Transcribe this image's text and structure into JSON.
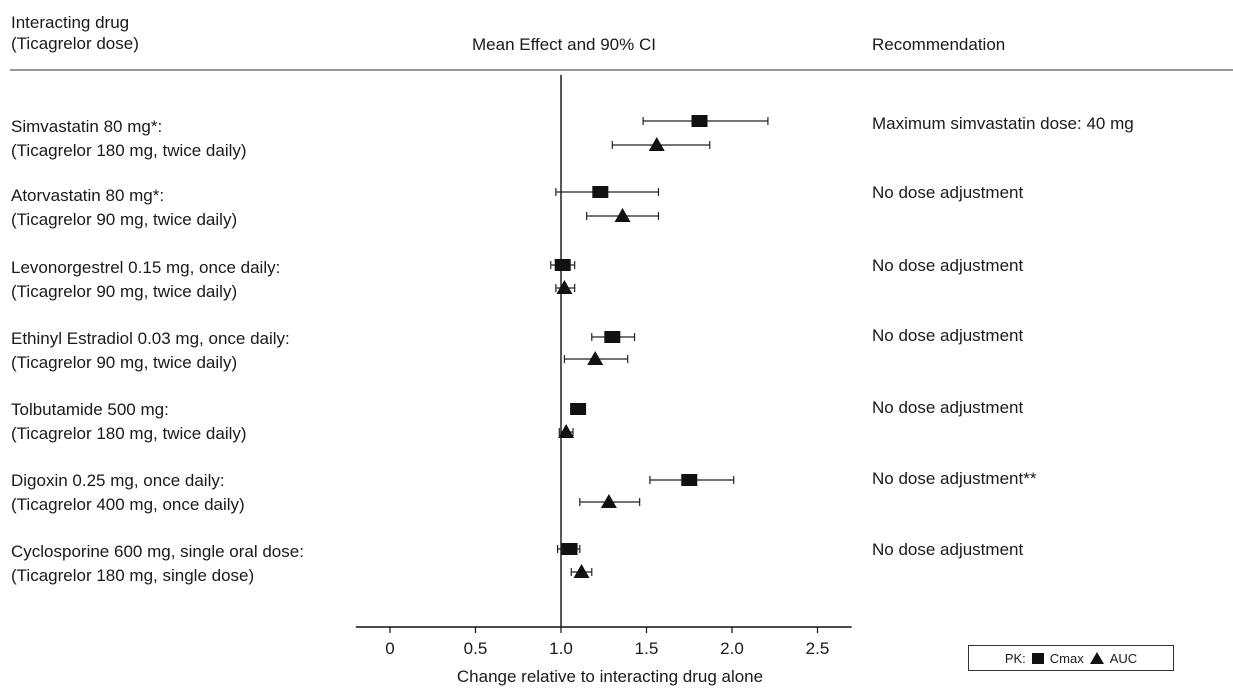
{
  "header": {
    "col1_line1": "Interacting drug",
    "col1_line2": "(Ticagrelor dose)",
    "col2": "Mean Effect and 90% CI",
    "col3": "Recommendation"
  },
  "rows": [
    {
      "drug": "Simvastatin 80 mg*:",
      "dose": "(Ticagrelor 180 mg, twice daily)",
      "recommendation": "Maximum simvastatin dose: 40 mg"
    },
    {
      "drug": "Atorvastatin 80 mg*:",
      "dose": "(Ticagrelor 90 mg, twice daily)",
      "recommendation": "No dose adjustment"
    },
    {
      "drug": "Levonorgestrel 0.15 mg, once daily:",
      "dose": "(Ticagrelor 90 mg, twice daily)",
      "recommendation": "No dose adjustment"
    },
    {
      "drug": "Ethinyl Estradiol 0.03 mg, once daily:",
      "dose": "(Ticagrelor 90 mg, twice daily)",
      "recommendation": "No dose adjustment"
    },
    {
      "drug": "Tolbutamide 500 mg:",
      "dose": "(Ticagrelor 180 mg, twice daily)",
      "recommendation": "No dose adjustment"
    },
    {
      "drug": "Digoxin 0.25 mg, once daily:",
      "dose": "(Ticagrelor 400 mg, once daily)",
      "recommendation": "No dose adjustment**"
    },
    {
      "drug": "Cyclosporine 600 mg, single oral dose:",
      "dose": "(Ticagrelor 180 mg, single dose)",
      "recommendation": "No dose adjustment"
    }
  ],
  "legend": {
    "prefix": "PK:",
    "cmax": "Cmax",
    "auc": "AUC"
  },
  "chart_data": {
    "type": "scatter",
    "xlabel": "Change relative to interacting drug alone",
    "xlim": [
      -0.2,
      2.7
    ],
    "xticks": [
      0,
      0.5,
      1.0,
      1.5,
      2.0,
      2.5
    ],
    "xtick_labels": [
      "0",
      "0.5",
      "1.0",
      "1.5",
      "2.0",
      "2.5"
    ],
    "reference_line": 1.0,
    "categories": [
      "Simvastatin 80 mg*",
      "Atorvastatin 80 mg*",
      "Levonorgestrel 0.15 mg",
      "Ethinyl Estradiol 0.03 mg",
      "Tolbutamide 500 mg",
      "Digoxin 0.25 mg",
      "Cyclosporine 600 mg"
    ],
    "series": [
      {
        "name": "Cmax",
        "marker": "square",
        "mean": [
          1.81,
          1.23,
          1.01,
          1.3,
          1.1,
          1.75,
          1.05
        ],
        "lower": [
          1.48,
          0.97,
          0.94,
          1.18,
          1.06,
          1.52,
          0.98
        ],
        "upper": [
          2.21,
          1.57,
          1.08,
          1.43,
          1.14,
          2.01,
          1.11
        ]
      },
      {
        "name": "AUC",
        "marker": "triangle",
        "mean": [
          1.56,
          1.36,
          1.02,
          1.2,
          1.03,
          1.28,
          1.12
        ],
        "lower": [
          1.3,
          1.15,
          0.97,
          1.02,
          0.99,
          1.11,
          1.06
        ],
        "upper": [
          1.87,
          1.57,
          1.08,
          1.39,
          1.07,
          1.46,
          1.18
        ]
      }
    ]
  }
}
